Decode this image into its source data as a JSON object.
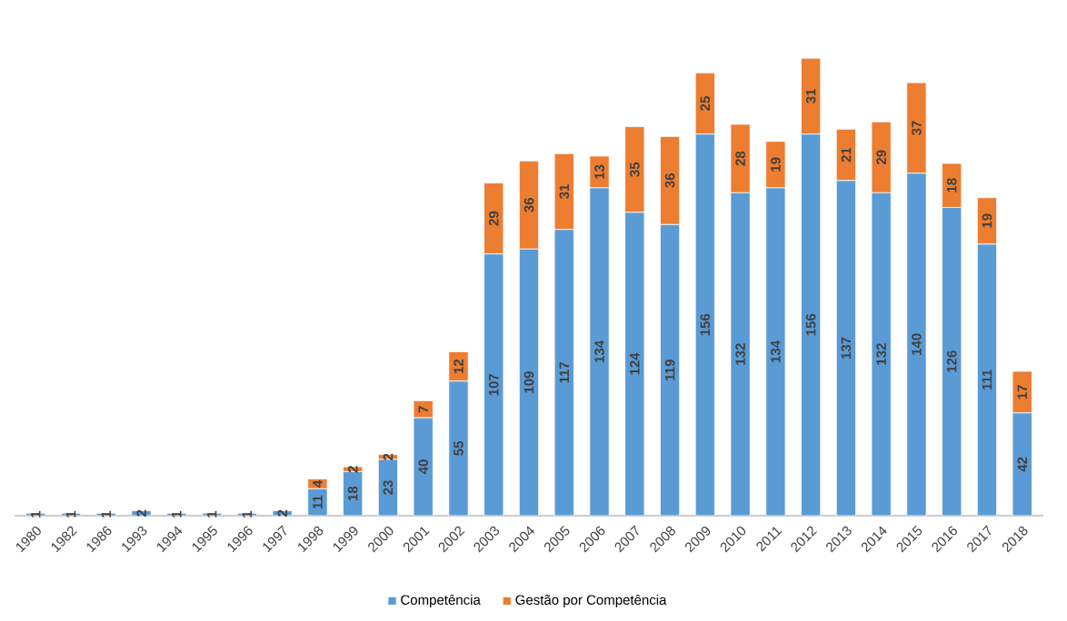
{
  "chart_data": {
    "type": "bar",
    "stacked": true,
    "data_labels": true,
    "legend": "bottom",
    "categories": [
      "1980",
      "1982",
      "1986",
      "1993",
      "1994",
      "1995",
      "1996",
      "1997",
      "1998",
      "1999",
      "2000",
      "2001",
      "2002",
      "2003",
      "2004",
      "2005",
      "2006",
      "2007",
      "2008",
      "2009",
      "2010",
      "2011",
      "2012",
      "2013",
      "2014",
      "2015",
      "2016",
      "2017",
      "2018"
    ],
    "series": [
      {
        "name": "Competência",
        "color": "#5b9bd5",
        "values": [
          1,
          1,
          1,
          2,
          1,
          1,
          1,
          2,
          11,
          18,
          23,
          40,
          55,
          107,
          109,
          117,
          134,
          124,
          119,
          156,
          132,
          134,
          156,
          137,
          132,
          140,
          126,
          111,
          42
        ]
      },
      {
        "name": "Gestão por Competência",
        "color": "#ed7d31",
        "values": [
          null,
          null,
          null,
          null,
          null,
          null,
          null,
          null,
          4,
          2,
          2,
          7,
          12,
          29,
          36,
          31,
          13,
          35,
          36,
          25,
          28,
          19,
          31,
          21,
          29,
          37,
          18,
          19,
          17
        ]
      }
    ]
  }
}
